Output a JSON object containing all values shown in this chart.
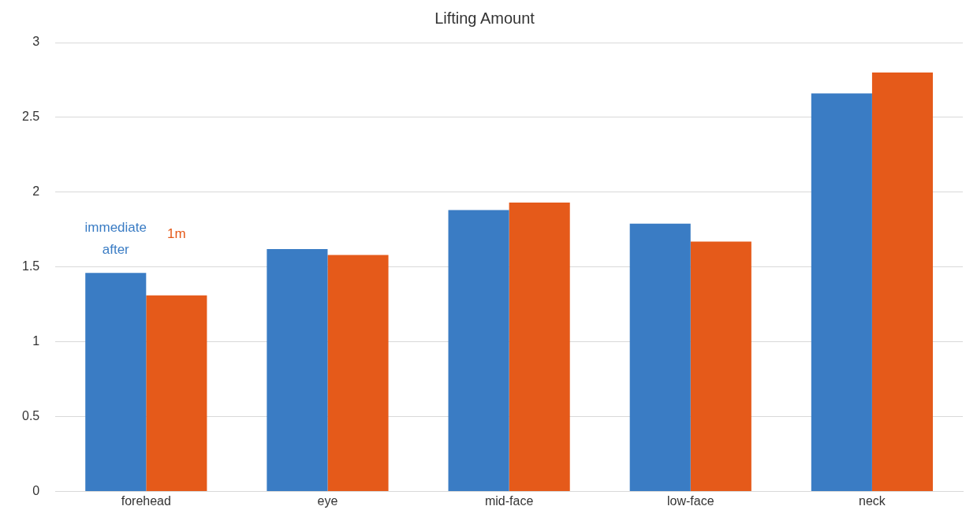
{
  "chart_data": {
    "type": "bar",
    "title": "Lifting Amount",
    "categories": [
      "forehead",
      "eye",
      "mid-face",
      "low-face",
      "neck"
    ],
    "series": [
      {
        "name": "immediate after",
        "color": "#3a7cc4",
        "values": [
          1.46,
          1.62,
          1.88,
          1.79,
          2.66
        ]
      },
      {
        "name": "1m",
        "color": "#e55a1a",
        "values": [
          1.31,
          1.58,
          1.93,
          1.67,
          2.8
        ]
      }
    ],
    "ylim": [
      0,
      3
    ],
    "yticks": [
      0,
      0.5,
      1,
      1.5,
      2,
      2.5,
      3
    ],
    "grid": "y"
  }
}
